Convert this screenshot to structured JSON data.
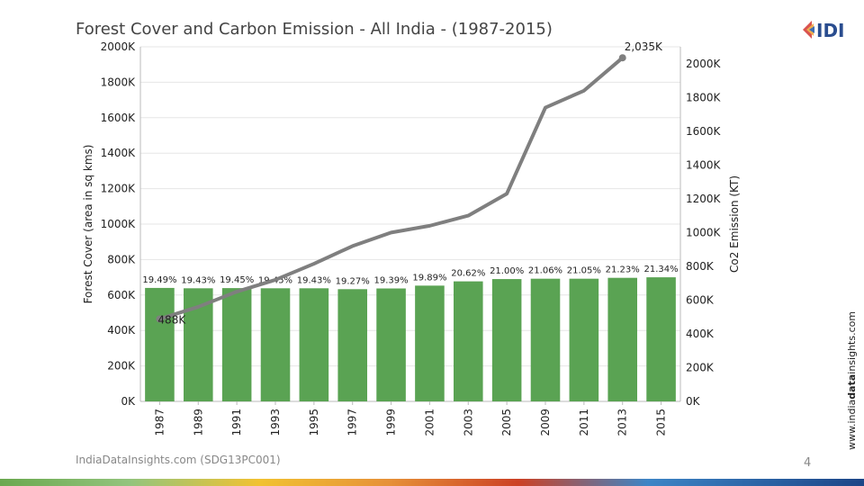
{
  "page": {
    "title": "Forest Cover and Carbon Emission - All India - (1987-2015)",
    "logo_text": "IDI",
    "footer_source": "IndiaDataInsights.com (SDG13PC001)",
    "page_number": "4",
    "side_url_pre": "www.india",
    "side_url_bold": "data",
    "side_url_post": "insights.com"
  },
  "chart_data": {
    "type": "bar+line",
    "title": "Forest Cover and Carbon Emission - All India - (1987-2015)",
    "categories": [
      "1987",
      "1989",
      "1991",
      "1993",
      "1995",
      "1997",
      "1999",
      "2001",
      "2003",
      "2005",
      "2009",
      "2011",
      "2013",
      "2015"
    ],
    "left_axis": {
      "label": "Forest Cover (area in sq kms)",
      "ylim": [
        0,
        2000
      ],
      "ticks": [
        0,
        200,
        400,
        600,
        800,
        1000,
        1200,
        1400,
        1600,
        1800,
        2000
      ],
      "tick_labels": [
        "0K",
        "200K",
        "400K",
        "600K",
        "800K",
        "1000K",
        "1200K",
        "1400K",
        "1600K",
        "1800K",
        "2000K"
      ]
    },
    "right_axis": {
      "label": "Co2 Emission (KT)",
      "ylim": [
        0,
        2100
      ],
      "ticks": [
        0,
        200,
        400,
        600,
        800,
        1000,
        1200,
        1400,
        1600,
        1800,
        2000
      ],
      "tick_labels": [
        "0K",
        "200K",
        "400K",
        "600K",
        "800K",
        "1000K",
        "1200K",
        "1400K",
        "1600K",
        "1800K",
        "2000K"
      ]
    },
    "series": [
      {
        "name": "Forest Cover",
        "type": "bar",
        "color": "#5aa353",
        "values": [
          640,
          638,
          639,
          638,
          638,
          633,
          637,
          653,
          677,
          690,
          692,
          692,
          697,
          700
        ],
        "bar_labels": [
          "19.49%",
          "19.43%",
          "19.45%",
          "19.45%",
          "19.43%",
          "19.27%",
          "19.39%",
          "19.89%",
          "20.62%",
          "21.00%",
          "21.06%",
          "21.05%",
          "21.23%",
          "21.34%"
        ]
      },
      {
        "name": "Co2 Emission",
        "type": "line",
        "color": "#7f7f7f",
        "values": [
          488,
          560,
          650,
          720,
          815,
          920,
          1000,
          1040,
          1100,
          1230,
          1740,
          1840,
          2035,
          null
        ],
        "point_labels": [
          "488K",
          "",
          "",
          "",
          "",
          "",
          "",
          "",
          "",
          "",
          "",
          "",
          "2,035K",
          ""
        ]
      }
    ]
  }
}
